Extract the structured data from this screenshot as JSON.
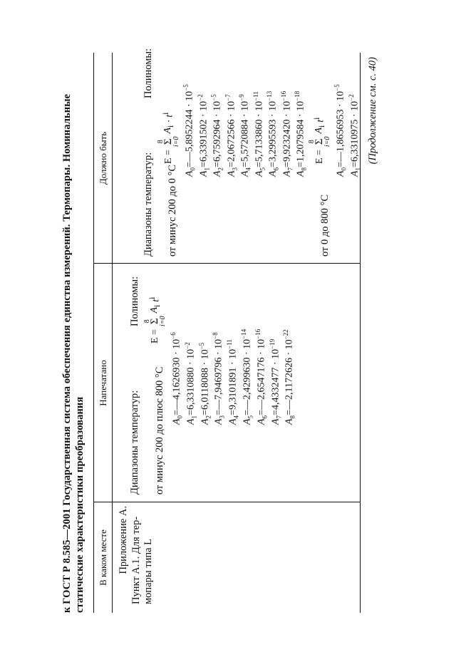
{
  "header": {
    "line1": "к ГОСТ Р 8.585—2001 Государственная система обеспечения единства измерений. Термопары. Номинальные",
    "line2": "статические характеристики преобразования"
  },
  "table": {
    "columns": [
      "В каком месте",
      "Напечатано",
      "Должно быть"
    ],
    "location": [
      "Приложение А.",
      "Пункт А.1. Для тер-",
      "мопары типа L"
    ],
    "printed": {
      "ranges_label": "Диапазоны температур:",
      "polynomials_label": "Полиномы:",
      "range": "от минус 200 до плюс 800 °С",
      "formula": {
        "lhs": "E =",
        "sum_top": "8",
        "sum_bottom": "i=0",
        "term": "A",
        "term_sub": "i",
        "power_base": "t",
        "power_exp": "i"
      },
      "coefficients": [
        {
          "sym": "A",
          "idx": "0",
          "val": "=—4,1626930 · 10",
          "exp": "−6"
        },
        {
          "sym": "A",
          "idx": "1",
          "val": "=6,3310880 · 10",
          "exp": "−2"
        },
        {
          "sym": "A",
          "idx": "2",
          "val": "=6,0118088 · 10",
          "exp": "−5"
        },
        {
          "sym": "A",
          "idx": "3",
          "val": "=—7,9469796 · 10",
          "exp": "−8"
        },
        {
          "sym": "A",
          "idx": "4",
          "val": "=9,3101891 · 10",
          "exp": "−11"
        },
        {
          "sym": "A",
          "idx": "5",
          "val": "=—2,4299630 · 10",
          "exp": "−14"
        },
        {
          "sym": "A",
          "idx": "6",
          "val": "=—2,6547176 · 10",
          "exp": "−16"
        },
        {
          "sym": "A",
          "idx": "7",
          "val": "=4,4332477 · 10",
          "exp": "−19"
        },
        {
          "sym": "A",
          "idx": "8",
          "val": "=—2,1172626 · 10",
          "exp": "−22"
        }
      ]
    },
    "correct": {
      "ranges_label": "Диапазоны температур:",
      "polynomials_label": "Полиномы:",
      "range1": "от минус 200 до 0 °С",
      "formula1": {
        "lhs": "E =",
        "sum_top": "8",
        "sum_bottom": "i=0",
        "term": "A",
        "term_sub": "i",
        "power_base": "· t",
        "power_exp": "i"
      },
      "coefficients1": [
        {
          "sym": "A",
          "idx": "0",
          "val": "=—5,8952244 · 10",
          "exp": "−5"
        },
        {
          "sym": "A",
          "idx": "1",
          "val": "=6,3391502 · 10",
          "exp": "−2"
        },
        {
          "sym": "A",
          "idx": "2",
          "val": "=6,7592964 · 10",
          "exp": "−5"
        },
        {
          "sym": "A",
          "idx": "3",
          "val": "=2,0672566 · 10",
          "exp": "−7"
        },
        {
          "sym": "A",
          "idx": "4",
          "val": "=5,5720884 · 10",
          "exp": "−9"
        },
        {
          "sym": "A",
          "idx": "5",
          "val": "=5,7133860 · 10",
          "exp": "−11"
        },
        {
          "sym": "A",
          "idx": "6",
          "val": "=3,2995593 · 10",
          "exp": "−13"
        },
        {
          "sym": "A",
          "idx": "7",
          "val": "=9,9232420 · 10",
          "exp": "−16"
        },
        {
          "sym": "A",
          "idx": "8",
          "val": "=1,2079584 · 10",
          "exp": "−18"
        }
      ],
      "range2": "от 0 до 800 °С",
      "formula2": {
        "lhs": "E =",
        "sum_top": "8",
        "sum_bottom": "i=0",
        "term": "A",
        "term_sub": "i",
        "power_base": "t",
        "power_exp": "i"
      },
      "coefficients2": [
        {
          "sym": "A",
          "idx": "0",
          "val": "=—1,8656953 · 10",
          "exp": "−5"
        },
        {
          "sym": "A",
          "idx": "1",
          "val": "=6,3310975 · 10",
          "exp": "−2"
        }
      ]
    }
  },
  "footer": "(Продолжение см. с. 40)"
}
